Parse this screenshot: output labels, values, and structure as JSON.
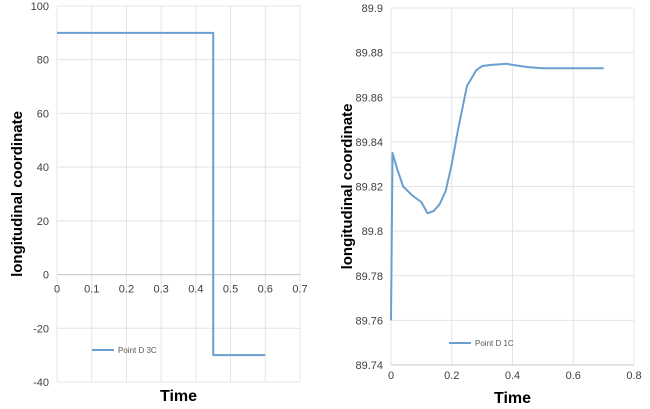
{
  "chart_data": [
    {
      "type": "line",
      "xlabel": "Time",
      "ylabel": "longitudinal coordinate",
      "xlim": [
        0,
        0.7
      ],
      "ylim": [
        -40,
        100
      ],
      "xticks": [
        "0",
        "0.1",
        "0.2",
        "0.3",
        "0.4",
        "0.5",
        "0.6",
        "0.7"
      ],
      "yticks": [
        "-40",
        "-20",
        "0",
        "20",
        "40",
        "60",
        "80",
        "100"
      ],
      "grid": true,
      "legend": "bottom-left",
      "color": "#6a9fd0",
      "series": [
        {
          "name": "Point D 3C",
          "x": [
            0,
            0.45,
            0.45,
            0.6
          ],
          "y": [
            90,
            90,
            -30,
            -30
          ]
        }
      ]
    },
    {
      "type": "line",
      "xlabel": "Time",
      "ylabel": "longitudinal coordinate",
      "xlim": [
        0,
        0.8
      ],
      "ylim": [
        89.74,
        89.9
      ],
      "xticks": [
        "0",
        "0.2",
        "0.4",
        "0.6",
        "0.8"
      ],
      "yticks": [
        "89.74",
        "89.76",
        "89.78",
        "89.8",
        "89.82",
        "89.84",
        "89.86",
        "89.88",
        "89.9"
      ],
      "grid": true,
      "legend": "bottom-left",
      "color": "#6a9fd0",
      "series": [
        {
          "name": "Point D 1C",
          "x": [
            0,
            0.005,
            0.02,
            0.04,
            0.07,
            0.1,
            0.12,
            0.14,
            0.16,
            0.18,
            0.2,
            0.22,
            0.25,
            0.28,
            0.3,
            0.33,
            0.36,
            0.38,
            0.4,
            0.45,
            0.5,
            0.55,
            0.6,
            0.65,
            0.7
          ],
          "y": [
            89.76,
            89.835,
            89.828,
            89.82,
            89.816,
            89.813,
            89.808,
            89.809,
            89.812,
            89.818,
            89.83,
            89.845,
            89.865,
            89.872,
            89.874,
            89.8745,
            89.8748,
            89.875,
            89.8745,
            89.8735,
            89.873,
            89.873,
            89.873,
            89.873,
            89.873
          ]
        }
      ]
    }
  ]
}
